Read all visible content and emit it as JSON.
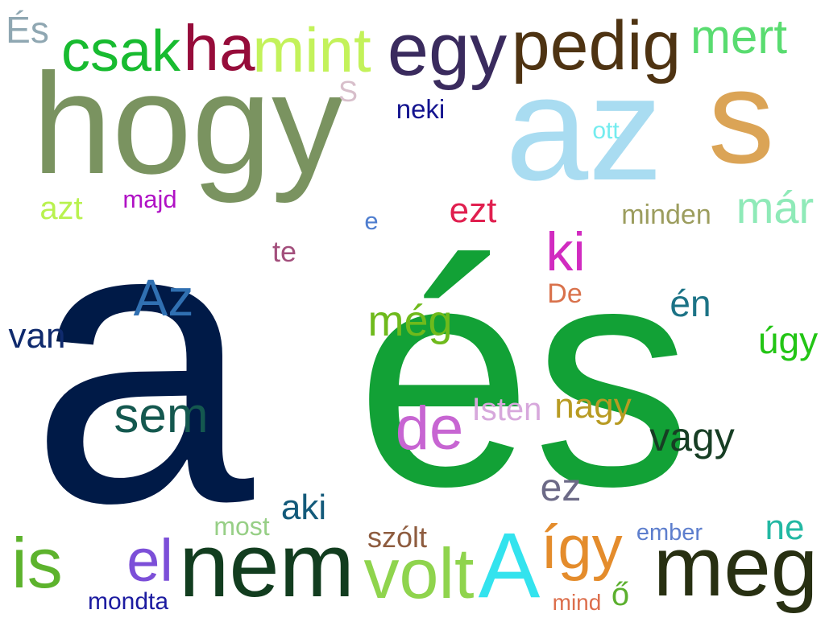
{
  "words": [
    {
      "text": "a",
      "color": "#001a47"
    },
    {
      "text": "és",
      "color": "#12a136"
    },
    {
      "text": "hogy",
      "color": "#7a9360"
    },
    {
      "text": "az",
      "color": "#a9dcf1"
    },
    {
      "text": "s",
      "color": "#dba456"
    },
    {
      "text": "egy",
      "color": "#3a2b5e"
    },
    {
      "text": "pedig",
      "color": "#4e3312"
    },
    {
      "text": "mint",
      "color": "#c3f25a"
    },
    {
      "text": "ha",
      "color": "#960c3a"
    },
    {
      "text": "csak",
      "color": "#18bb30"
    },
    {
      "text": "mert",
      "color": "#59dc70"
    },
    {
      "text": "És",
      "color": "#8fa7b2"
    },
    {
      "text": "S",
      "color": "#d8bfcb"
    },
    {
      "text": "neki",
      "color": "#13138f"
    },
    {
      "text": "ott",
      "color": "#74ecef"
    },
    {
      "text": "már",
      "color": "#8feab8"
    },
    {
      "text": "minden",
      "color": "#9c9d5e"
    },
    {
      "text": "azt",
      "color": "#b9f24f"
    },
    {
      "text": "majd",
      "color": "#b012c5"
    },
    {
      "text": "e",
      "color": "#4f7ecf"
    },
    {
      "text": "ezt",
      "color": "#e01f4f"
    },
    {
      "text": "ki",
      "color": "#d12bc0"
    },
    {
      "text": "te",
      "color": "#a34f7c"
    },
    {
      "text": "Az",
      "color": "#3070b2"
    },
    {
      "text": "De",
      "color": "#d9724c"
    },
    {
      "text": "én",
      "color": "#1c7386"
    },
    {
      "text": "van",
      "color": "#0f2a6d"
    },
    {
      "text": "még",
      "color": "#6fba1c"
    },
    {
      "text": "úgy",
      "color": "#23c515"
    },
    {
      "text": "sem",
      "color": "#14584f"
    },
    {
      "text": "Isten",
      "color": "#d7a8dc"
    },
    {
      "text": "nagy",
      "color": "#b89b22"
    },
    {
      "text": "de",
      "color": "#c765d2"
    },
    {
      "text": "vagy",
      "color": "#173e24"
    },
    {
      "text": "ez",
      "color": "#6c6a87"
    },
    {
      "text": "aki",
      "color": "#135a7a"
    },
    {
      "text": "most",
      "color": "#97cf86"
    },
    {
      "text": "szólt",
      "color": "#8e5c3f"
    },
    {
      "text": "ne",
      "color": "#23b8a3"
    },
    {
      "text": "ember",
      "color": "#5d7ecd"
    },
    {
      "text": "is",
      "color": "#5db32d"
    },
    {
      "text": "el",
      "color": "#7c4fd8"
    },
    {
      "text": "nem",
      "color": "#123d1f"
    },
    {
      "text": "volt",
      "color": "#8fd44d"
    },
    {
      "text": "A",
      "color": "#33e3ee"
    },
    {
      "text": "így",
      "color": "#e48c2c"
    },
    {
      "text": "meg",
      "color": "#283012"
    },
    {
      "text": "mondta",
      "color": "#1c1ba0"
    },
    {
      "text": "mind",
      "color": "#dc6e4c"
    },
    {
      "text": "ő",
      "color": "#5cb02f"
    }
  ]
}
